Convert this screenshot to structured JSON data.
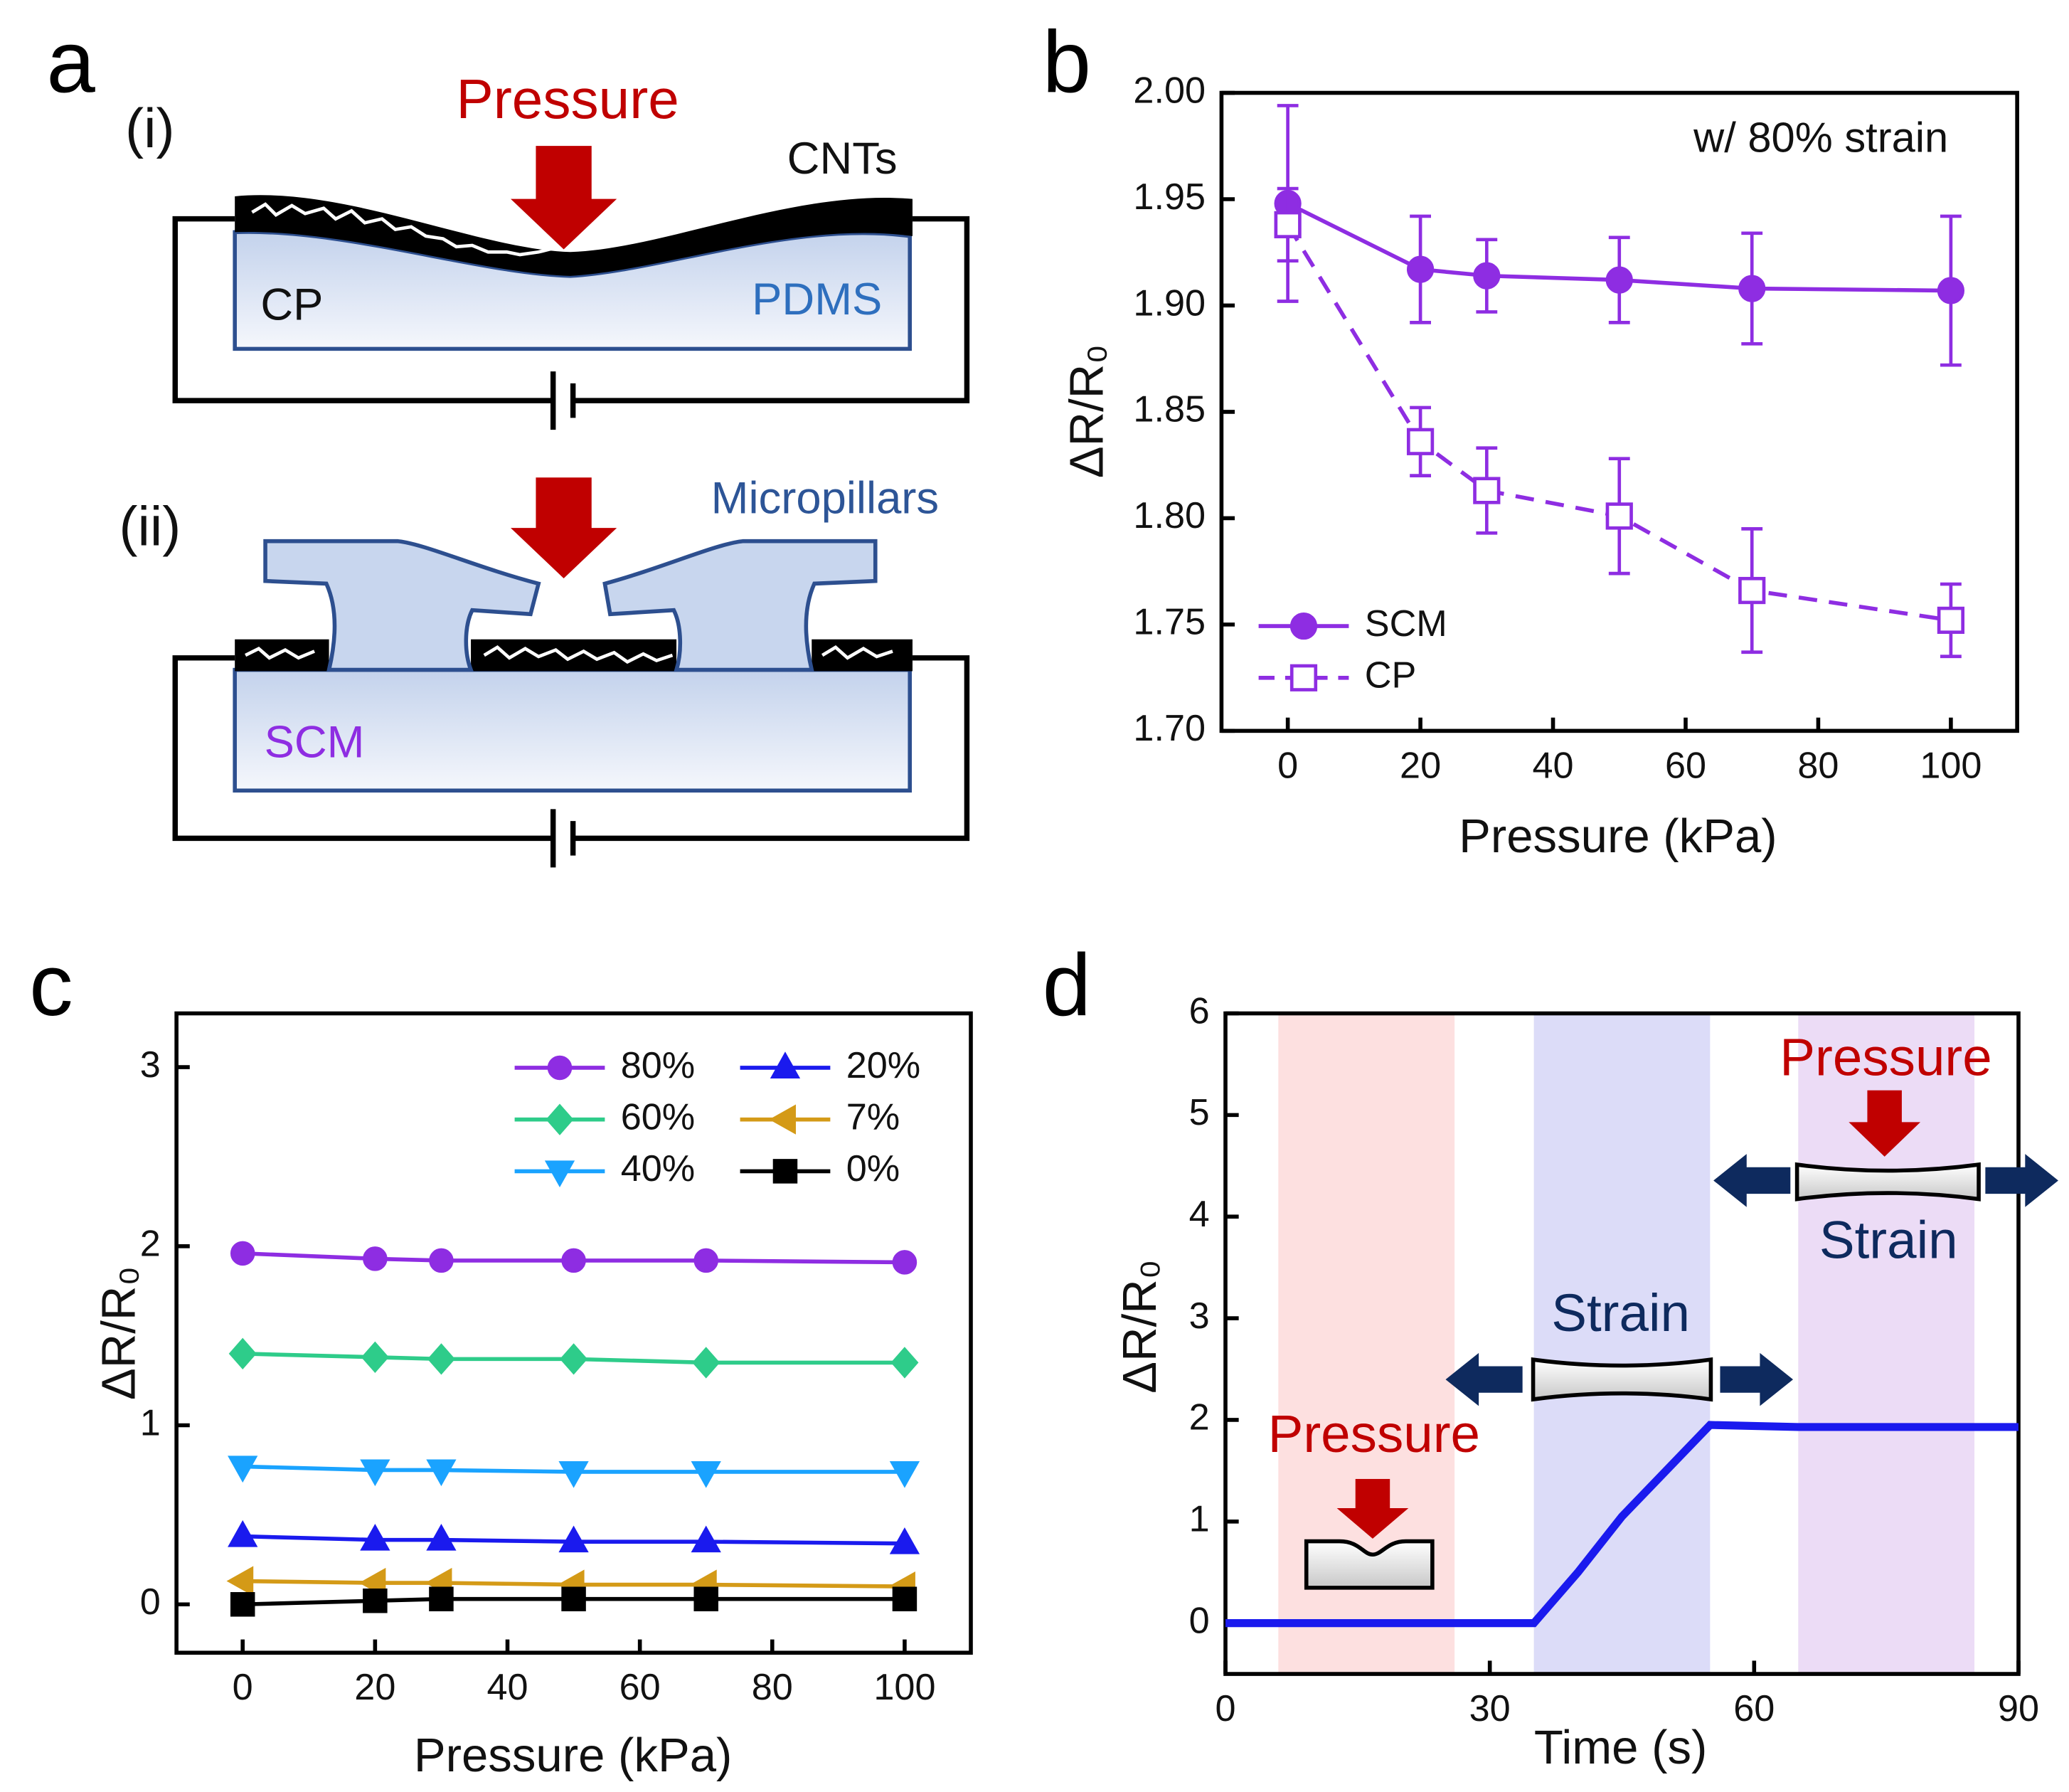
{
  "panels": [
    "a",
    "b",
    "c",
    "d"
  ],
  "diagram": {
    "part1": "(i)",
    "pressure": "Pressure",
    "cnts": "CNTs",
    "cp": "CP",
    "pdms": "PDMS",
    "part2": "(ii)",
    "micropillars": "Micropillars",
    "scm": "SCM"
  },
  "chart_data": [
    {
      "type": "line",
      "xlabel": "Pressure (kPa)",
      "ylabel": "ΔR/R₀",
      "annotation": "w/ 80% strain",
      "x": [
        0,
        20,
        30,
        50,
        70,
        100
      ],
      "series": [
        {
          "name": "SCM",
          "color": "#8e2de2",
          "marker": "circle",
          "marker_fill": "solid",
          "dash": false,
          "values": [
            1.948,
            1.917,
            1.914,
            1.912,
            1.908,
            1.907
          ],
          "errors": [
            0.046,
            0.025,
            0.017,
            0.02,
            0.026,
            0.035
          ]
        },
        {
          "name": "CP",
          "color": "#8e2de2",
          "marker": "square",
          "marker_fill": "open",
          "dash": true,
          "values": [
            1.938,
            1.836,
            1.813,
            1.801,
            1.766,
            1.752
          ],
          "errors": [
            0.017,
            0.016,
            0.02,
            0.027,
            0.029,
            0.017
          ]
        }
      ],
      "xlim": [
        -10,
        110
      ],
      "xticks": [
        0,
        20,
        40,
        60,
        80,
        100
      ],
      "ylim": [
        1.7,
        2.0
      ],
      "yticks": [
        {
          "value": 1.7,
          "label": "1.70"
        },
        1.75,
        {
          "value": 1.8,
          "label": "1.80"
        },
        1.85,
        {
          "value": 1.9,
          "label": "1.90"
        },
        1.95,
        {
          "value": 2.0,
          "label": "2.00"
        }
      ],
      "legend": "lower left",
      "legend_columns": 1
    },
    {
      "type": "line",
      "xlabel": "Pressure (kPa)",
      "ylabel": "ΔR/R₀",
      "x": [
        0,
        20,
        30,
        50,
        70,
        100
      ],
      "series": [
        {
          "name": "80%",
          "color": "#8e2de2",
          "marker": "circle",
          "values": [
            1.96,
            1.93,
            1.92,
            1.92,
            1.92,
            1.91
          ]
        },
        {
          "name": "60%",
          "color": "#2ecc8a",
          "marker": "diamond",
          "values": [
            1.4,
            1.38,
            1.37,
            1.37,
            1.35,
            1.35
          ]
        },
        {
          "name": "40%",
          "color": "#1aa3ff",
          "marker": "triangle-down",
          "values": [
            0.77,
            0.75,
            0.75,
            0.74,
            0.74,
            0.74
          ]
        },
        {
          "name": "20%",
          "color": "#1a1aee",
          "marker": "triangle-up",
          "values": [
            0.38,
            0.36,
            0.36,
            0.35,
            0.35,
            0.34
          ]
        },
        {
          "name": "7%",
          "color": "#d49a17",
          "marker": "triangle-left",
          "values": [
            0.13,
            0.12,
            0.12,
            0.11,
            0.11,
            0.1
          ]
        },
        {
          "name": "0%",
          "color": "#000000",
          "marker": "square",
          "values": [
            0,
            0.02,
            0.03,
            0.03,
            0.03,
            0.03
          ]
        }
      ],
      "xlim": [
        -10,
        110
      ],
      "xticks": [
        0,
        20,
        40,
        60,
        80,
        100
      ],
      "ylim": [
        -0.27,
        3.3
      ],
      "yticks": [
        0,
        1,
        2,
        3
      ],
      "legend": "upper right",
      "legend_columns": 2
    },
    {
      "type": "line",
      "xlabel": "Time (s)",
      "ylabel": "ΔR/R₀",
      "annotations": [
        "Pressure",
        "Strain",
        "Pressure",
        "Strain"
      ],
      "spans": [
        {
          "x": [
            6,
            26
          ],
          "color": "#fde0e0"
        },
        {
          "x": [
            35,
            55
          ],
          "color": "#dcdcf8"
        },
        {
          "x": [
            65,
            85
          ],
          "color": "#ecdcf6"
        }
      ],
      "x": [
        0,
        35,
        40,
        45,
        50,
        55,
        65,
        90
      ],
      "series": [
        {
          "name": "ΔR/R₀",
          "color": "#1a1aee",
          "values": [
            0,
            0,
            0.5,
            1.05,
            1.5,
            1.95,
            1.93,
            1.93
          ]
        }
      ],
      "xlim": [
        0,
        90
      ],
      "xticks": [
        0,
        30,
        60,
        90
      ],
      "ylim": [
        -0.5,
        6
      ],
      "yticks": [
        0,
        1,
        2,
        3,
        4,
        5,
        6
      ]
    }
  ]
}
